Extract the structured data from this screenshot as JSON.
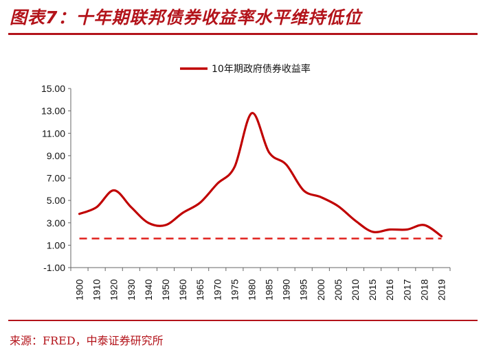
{
  "header": {
    "title": "图表7：十年期联邦债券收益率水平维持低位"
  },
  "footer": {
    "source": "来源：FRED，中泰证券研究所"
  },
  "colors": {
    "accent": "#b3131a",
    "series": "#c00000",
    "reference": "#e0201c"
  },
  "chart_data": {
    "type": "line",
    "title": "",
    "xlabel": "",
    "ylabel": "",
    "ylim": [
      -1,
      15
    ],
    "yticks": [
      "-1.00",
      "1.00",
      "3.00",
      "5.00",
      "7.00",
      "9.00",
      "11.00",
      "13.00",
      "15.00"
    ],
    "categories": [
      "1900",
      "1910",
      "1920",
      "1930",
      "1940",
      "1950",
      "1960",
      "1965",
      "1970",
      "1975",
      "1980",
      "1985",
      "1990",
      "1995",
      "2000",
      "2005",
      "2010",
      "2015",
      "2016",
      "2017",
      "2018",
      "2019"
    ],
    "series": [
      {
        "name": "10年期政府债券收益率",
        "values": [
          3.8,
          4.4,
          5.9,
          4.4,
          3.0,
          2.8,
          3.9,
          4.8,
          6.5,
          8.0,
          12.8,
          9.3,
          8.2,
          5.9,
          5.3,
          4.5,
          3.2,
          2.2,
          2.4,
          2.4,
          2.8,
          1.8
        ]
      }
    ],
    "reference_line": {
      "value": 1.6,
      "style": "dashed"
    },
    "legend": "top-center",
    "grid": false
  }
}
